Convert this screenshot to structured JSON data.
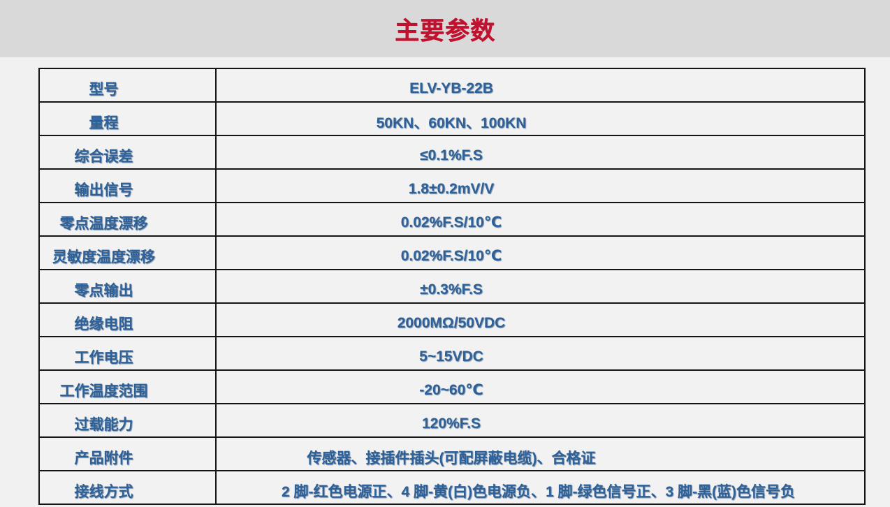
{
  "page": {
    "title": "主要参数"
  },
  "theme": {
    "page": "#f1f1f1",
    "band": "#d9d9d9",
    "title": "#c0122f",
    "cell": "#f2f2f2",
    "text": "#2d6199",
    "border": "#141414"
  },
  "table": {
    "rows": [
      {
        "label": "型号",
        "value": "ELV-YB-22B"
      },
      {
        "label": "量程",
        "value": "50KN、60KN、100KN"
      },
      {
        "label": "综合误差",
        "value": "≤0.1%F.S"
      },
      {
        "label": "输出信号",
        "value": "1.8±0.2mV/V"
      },
      {
        "label": "零点温度漂移",
        "value": "0.02%F.S/10℃"
      },
      {
        "label": "灵敏度温度漂移",
        "value": "0.02%F.S/10℃"
      },
      {
        "label": "零点输出",
        "value": "±0.3%F.S"
      },
      {
        "label": "绝缘电阻",
        "value": "2000MΩ/50VDC"
      },
      {
        "label": "工作电压",
        "value": "5~15VDC"
      },
      {
        "label": "工作温度范围",
        "value": "-20~60℃"
      },
      {
        "label": "过载能力",
        "value": "120%F.S"
      },
      {
        "label": "产品附件",
        "value": "传感器、接插件插头(可配屏蔽电缆)、合格证"
      },
      {
        "label": "接线方式",
        "value": "2 脚-红色电源正、4 脚-黄(白)色电源负、1 脚-绿色信号正、3 脚-黑(蓝)色信号负"
      }
    ]
  }
}
